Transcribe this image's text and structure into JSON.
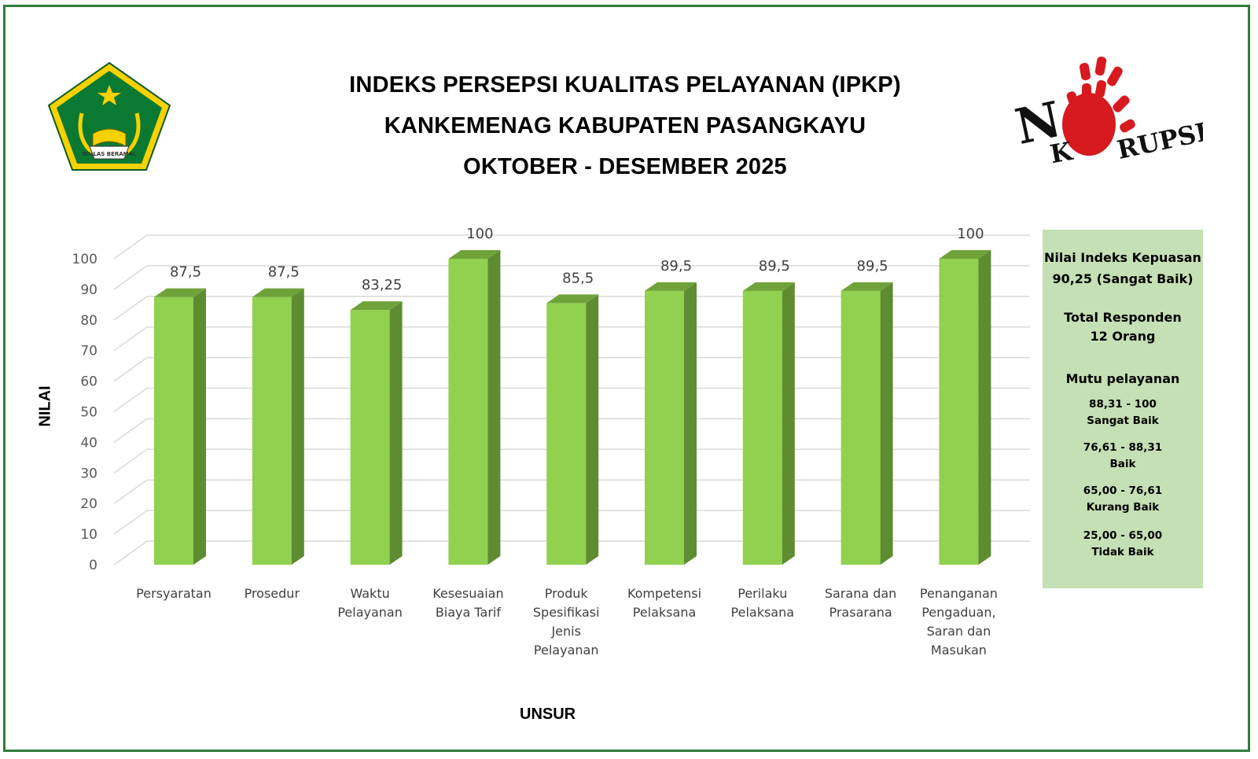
{
  "header": {
    "title_lines": [
      "INDEKS PERSEPSI KUALITAS PELAYANAN (IPKP)",
      "KANKEMENAG KABUPATEN PASANGKAYU",
      "OKTOBER - DESEMBER 2025"
    ]
  },
  "logos": {
    "left": {
      "name": "kemenag-emblem",
      "ribbon_text": "IKHLAS BERAMAL",
      "colors": [
        "#006b2d",
        "#f7d100"
      ]
    },
    "right": {
      "name": "no-korupsi-logo",
      "text_parts": [
        "N",
        "K",
        "RUPSI"
      ],
      "hand_color": "#d71920"
    }
  },
  "chart_data": {
    "type": "bar",
    "style": "3d-columns",
    "ylabel": "NILAI",
    "xlabel": "UNSUR",
    "ylim": [
      0,
      100
    ],
    "yticks": [
      0,
      10,
      20,
      30,
      40,
      50,
      60,
      70,
      80,
      90,
      100
    ],
    "grid": true,
    "bar_color": "#92d050",
    "categories": [
      [
        "Persyaratan"
      ],
      [
        "Prosedur"
      ],
      [
        "Waktu",
        "Pelayanan"
      ],
      [
        "Kesesuaian",
        "Biaya Tarif"
      ],
      [
        "Produk",
        "Spesifikasi",
        "Jenis",
        "Pelayanan"
      ],
      [
        "Kompetensi",
        "Pelaksana"
      ],
      [
        "Perilaku",
        "Pelaksana"
      ],
      [
        "Sarana dan",
        "Prasarana"
      ],
      [
        "Penanganan",
        "Pengaduan,",
        "Saran dan",
        "Masukan"
      ]
    ],
    "values": [
      87.5,
      87.5,
      83.25,
      100,
      85.5,
      89.5,
      89.5,
      89.5,
      100
    ],
    "value_labels": [
      "87,5",
      "87,5",
      "83,25",
      "100",
      "85,5",
      "89,5",
      "89,5",
      "89,5",
      "100"
    ]
  },
  "info_panel": {
    "index_title": "Nilai Indeks Kepuasan",
    "index_value": "90,25 (Sangat Baik)",
    "respondents_title": "Total Responden",
    "respondents_value": "12 Orang",
    "quality_title": "Mutu pelayanan",
    "ranges": [
      {
        "range": "88,31 - 100",
        "label": "Sangat Baik"
      },
      {
        "range": "76,61 - 88,31",
        "label": "Baik"
      },
      {
        "range": "65,00 - 76,61",
        "label": "Kurang Baik"
      },
      {
        "range": "25,00 - 65,00",
        "label": "Tidak Baik"
      }
    ],
    "background": "#c5e0b4"
  }
}
